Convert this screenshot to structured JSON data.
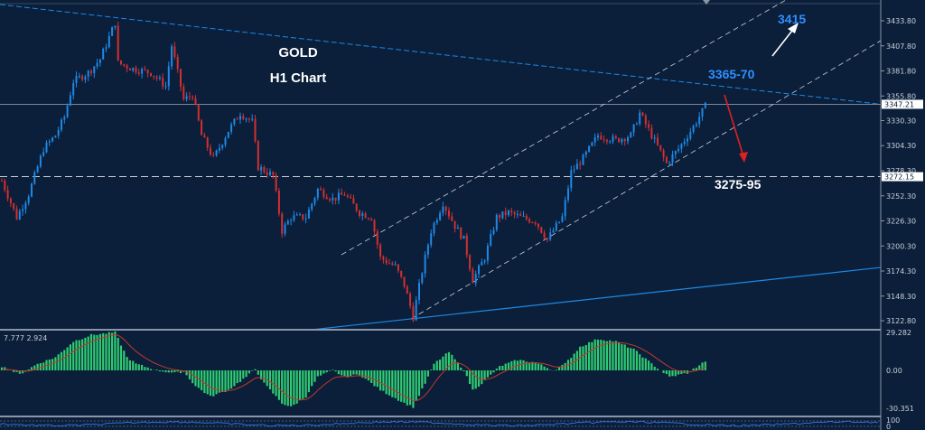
{
  "chart_data": {
    "type": "candlestick",
    "title": "GOLD",
    "subtitle": "H1 Chart",
    "colors": {
      "background": "#0b1f3a",
      "up": "#1e88e5",
      "down": "#d32f2f",
      "histogram": "#2ecc71",
      "signal": "#c0392b",
      "resistance": "#1e88e5",
      "channel": "#c8cfd8"
    },
    "ylim": [
      3110,
      3450
    ],
    "yticks": [
      "3433.80",
      "3407.80",
      "3381.80",
      "3355.80",
      "3330.30",
      "3304.30",
      "3278.30",
      "3252.30",
      "3226.30",
      "3200.30",
      "3174.30",
      "3148.30",
      "3122.80"
    ],
    "ytick_values": [
      3433.8,
      3407.8,
      3381.8,
      3355.8,
      3330.3,
      3304.3,
      3278.3,
      3252.3,
      3226.3,
      3200.3,
      3174.3,
      3148.3,
      3122.8
    ],
    "current_price": "3347.21",
    "support_level_label": "3272.15",
    "price_path_bar_price": [
      [
        0,
        3268
      ],
      [
        5,
        3230
      ],
      [
        9,
        3254
      ],
      [
        14,
        3301
      ],
      [
        18,
        3315
      ],
      [
        21,
        3334
      ],
      [
        24,
        3371
      ],
      [
        29,
        3380
      ],
      [
        33,
        3394
      ],
      [
        38,
        3432
      ],
      [
        39,
        3390
      ],
      [
        44,
        3384
      ],
      [
        50,
        3380
      ],
      [
        55,
        3366
      ],
      [
        57,
        3408
      ],
      [
        61,
        3352
      ],
      [
        64,
        3357
      ],
      [
        67,
        3315
      ],
      [
        71,
        3291
      ],
      [
        76,
        3320
      ],
      [
        80,
        3338
      ],
      [
        84,
        3329
      ],
      [
        86,
        3282
      ],
      [
        91,
        3273
      ],
      [
        94,
        3216
      ],
      [
        97,
        3230
      ],
      [
        102,
        3230
      ],
      [
        106,
        3259
      ],
      [
        111,
        3249
      ],
      [
        115,
        3254
      ],
      [
        120,
        3235
      ],
      [
        124,
        3230
      ],
      [
        127,
        3188
      ],
      [
        132,
        3179
      ],
      [
        135,
        3160
      ],
      [
        138,
        3127
      ],
      [
        141,
        3174
      ],
      [
        144,
        3216
      ],
      [
        148,
        3245
      ],
      [
        152,
        3221
      ],
      [
        155,
        3207
      ],
      [
        158,
        3165
      ],
      [
        162,
        3188
      ],
      [
        166,
        3230
      ],
      [
        170,
        3235
      ],
      [
        174,
        3230
      ],
      [
        179,
        3226
      ],
      [
        183,
        3207
      ],
      [
        188,
        3230
      ],
      [
        191,
        3277
      ],
      [
        195,
        3291
      ],
      [
        200,
        3315
      ],
      [
        206,
        3310
      ],
      [
        211,
        3315
      ],
      [
        214,
        3338
      ],
      [
        218,
        3315
      ],
      [
        223,
        3286
      ],
      [
        227,
        3301
      ],
      [
        232,
        3324
      ],
      [
        236,
        3345
      ]
    ],
    "annotations": [
      {
        "text": "3415",
        "color": "#2e8fff",
        "arrow": "up",
        "arrow_color": "#ffffff"
      },
      {
        "text": "3365-70",
        "color": "#2e8fff",
        "arrow": "down",
        "arrow_color": "#e02020"
      },
      {
        "text": "3275-95",
        "color": "#ffffff"
      }
    ],
    "macd": {
      "label": "7.777 2.924",
      "yticks": [
        "29.282",
        "0.00",
        "-30.351"
      ],
      "ylim": [
        -30.351,
        29.282
      ],
      "histogram_bar_value": [
        [
          0,
          3
        ],
        [
          6,
          -3
        ],
        [
          12,
          5
        ],
        [
          18,
          10
        ],
        [
          24,
          22
        ],
        [
          30,
          27
        ],
        [
          38,
          29
        ],
        [
          42,
          10
        ],
        [
          45,
          5
        ],
        [
          52,
          0
        ],
        [
          58,
          -2
        ],
        [
          61,
          -1
        ],
        [
          65,
          -12
        ],
        [
          70,
          -20
        ],
        [
          76,
          -15
        ],
        [
          82,
          -5
        ],
        [
          85,
          1
        ],
        [
          88,
          -10
        ],
        [
          94,
          -25
        ],
        [
          97,
          -28
        ],
        [
          102,
          -20
        ],
        [
          106,
          -5
        ],
        [
          111,
          0
        ],
        [
          115,
          -5
        ],
        [
          120,
          -3
        ],
        [
          127,
          -15
        ],
        [
          135,
          -25
        ],
        [
          138,
          -28
        ],
        [
          142,
          -10
        ],
        [
          145,
          5
        ],
        [
          150,
          14
        ],
        [
          155,
          0
        ],
        [
          158,
          -15
        ],
        [
          161,
          -10
        ],
        [
          167,
          3
        ],
        [
          173,
          8
        ],
        [
          179,
          6
        ],
        [
          185,
          0
        ],
        [
          189,
          5
        ],
        [
          194,
          18
        ],
        [
          200,
          24
        ],
        [
          206,
          22
        ],
        [
          212,
          16
        ],
        [
          218,
          5
        ],
        [
          224,
          -5
        ],
        [
          230,
          -2
        ],
        [
          236,
          7
        ]
      ]
    },
    "lower_pane": {
      "yticks": [
        "100",
        "0"
      ]
    }
  }
}
